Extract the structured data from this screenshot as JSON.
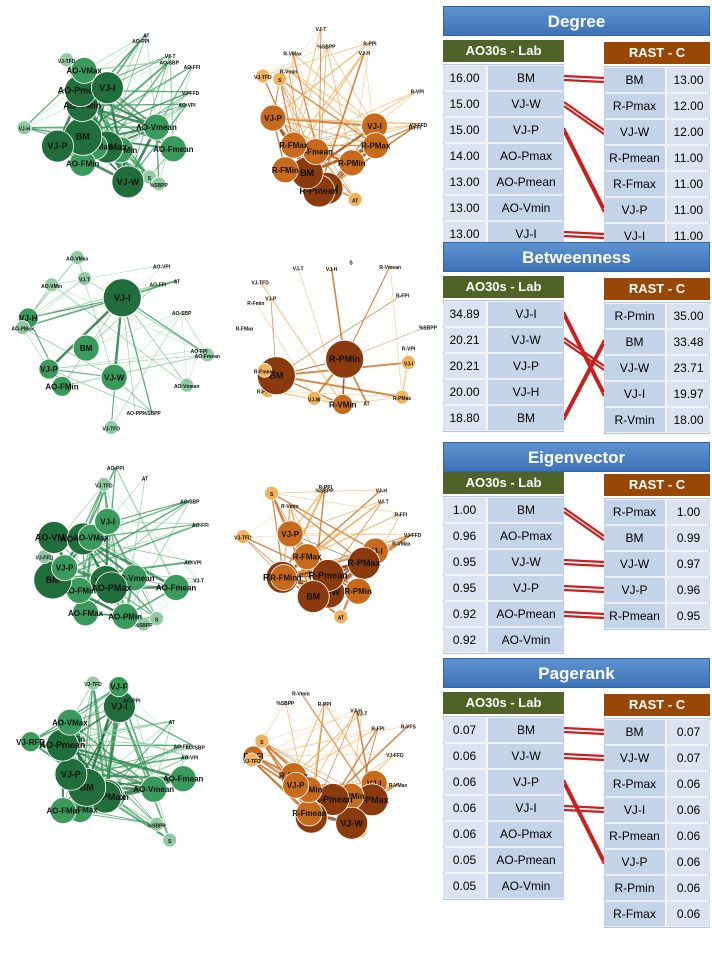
{
  "colors": {
    "green_dark": "#1f6e3c",
    "green_mid": "#3a9a5c",
    "green_light": "#8fcaa2",
    "orange_dark": "#8a3a0c",
    "orange_mid": "#c86a1c",
    "orange_light": "#f0b25a",
    "title_blue": "#4a7fc1",
    "lab_header": "#4f6228",
    "rast_header": "#974806",
    "connector_red": "#cc1f1f"
  },
  "panels": [
    {
      "title": "Degree",
      "lab_header": "AO30s - Lab",
      "rast_header": "RAST - C",
      "lab": [
        [
          "16.00",
          "BM"
        ],
        [
          "15.00",
          "VJ-W"
        ],
        [
          "15.00",
          "VJ-P"
        ],
        [
          "14.00",
          "AO-Pmax"
        ],
        [
          "13.00",
          "AO-Pmean"
        ],
        [
          "13.00",
          "AO-Vmin"
        ],
        [
          "13.00",
          "VJ-I"
        ]
      ],
      "rast": [
        [
          "BM",
          "13.00"
        ],
        [
          "R-Pmax",
          "12.00"
        ],
        [
          "VJ-W",
          "12.00"
        ],
        [
          "R-Pmean",
          "11.00"
        ],
        [
          "R-Fmax",
          "11.00"
        ],
        [
          "VJ-P",
          "11.00"
        ],
        [
          "VJ-I",
          "11.00"
        ]
      ],
      "links": [
        [
          0,
          0
        ],
        [
          1,
          2
        ],
        [
          2,
          5
        ],
        [
          6,
          6
        ]
      ]
    },
    {
      "title": "Betweenness",
      "lab_header": "AO30s - Lab",
      "rast_header": "RAST - C",
      "lab": [
        [
          "34.89",
          "VJ-I"
        ],
        [
          "20.21",
          "VJ-W"
        ],
        [
          "20.21",
          "VJ-P"
        ],
        [
          "20.00",
          "VJ-H"
        ],
        [
          "18.80",
          "BM"
        ]
      ],
      "rast": [
        [
          "R-Pmin",
          "35.00"
        ],
        [
          "BM",
          "33.48"
        ],
        [
          "VJ-W",
          "23.71"
        ],
        [
          "VJ-I",
          "19.97"
        ],
        [
          "R-Vmin",
          "18.00"
        ]
      ],
      "links": [
        [
          0,
          3
        ],
        [
          1,
          2
        ],
        [
          4,
          1
        ]
      ]
    },
    {
      "title": "Eigenvector",
      "lab_header": "AO30s - Lab",
      "rast_header": "RAST - C",
      "lab": [
        [
          "1.00",
          "BM"
        ],
        [
          "0.96",
          "AO-Pmax"
        ],
        [
          "0.95",
          "VJ-W"
        ],
        [
          "0.95",
          "VJ-P"
        ],
        [
          "0.92",
          "AO-Pmean"
        ],
        [
          "0.92",
          "AO-Vmin"
        ]
      ],
      "rast": [
        [
          "R-Pmax",
          "1.00"
        ],
        [
          "BM",
          "0.99"
        ],
        [
          "VJ-W",
          "0.97"
        ],
        [
          "VJ-P",
          "0.96"
        ],
        [
          "R-Pmean",
          "0.95"
        ]
      ],
      "links": [
        [
          0,
          1
        ],
        [
          2,
          2
        ],
        [
          3,
          3
        ],
        [
          4,
          4
        ]
      ]
    },
    {
      "title": "Pagerank",
      "lab_header": "AO30s - Lab",
      "rast_header": "RAST - C",
      "lab": [
        [
          "0.07",
          "BM"
        ],
        [
          "0.06",
          "VJ-W"
        ],
        [
          "0.06",
          "VJ-P"
        ],
        [
          "0.06",
          "VJ-I"
        ],
        [
          "0.06",
          "AO-Pmax"
        ],
        [
          "0.05",
          "AO-Pmean"
        ],
        [
          "0.05",
          "AO-Vmin"
        ]
      ],
      "rast": [
        [
          "BM",
          "0.07"
        ],
        [
          "VJ-W",
          "0.07"
        ],
        [
          "R-Pmax",
          "0.06"
        ],
        [
          "VJ-I",
          "0.06"
        ],
        [
          "R-Pmean",
          "0.06"
        ],
        [
          "VJ-P",
          "0.06"
        ],
        [
          "R-Pmin",
          "0.06"
        ],
        [
          "R-Fmax",
          "0.06"
        ]
      ],
      "links": [
        [
          0,
          0
        ],
        [
          1,
          1
        ],
        [
          2,
          5
        ],
        [
          3,
          3
        ]
      ]
    }
  ],
  "networks": [
    {
      "theme": "green",
      "nodes": [
        {
          "id": "AO-Fmean",
          "s": 3
        },
        {
          "id": "AO-Vmean",
          "s": 3
        },
        {
          "id": "S",
          "s": 1
        },
        {
          "id": "%SBPP",
          "s": 1
        },
        {
          "id": "AO-PMin",
          "s": 3
        },
        {
          "id": "VJ-W",
          "s": 4
        },
        {
          "id": "AO-PMax",
          "s": 4
        },
        {
          "id": "AO-FMax",
          "s": 3
        },
        {
          "id": "AO-FMin",
          "s": 3
        },
        {
          "id": "BM",
          "s": 5
        },
        {
          "id": "VJ-P",
          "s": 4
        },
        {
          "id": "VJ-H",
          "s": 1
        },
        {
          "id": "AO-VMin",
          "s": 4
        },
        {
          "id": "AO-Pmean",
          "s": 4
        },
        {
          "id": "AO-VMax",
          "s": 3
        },
        {
          "id": "VJ-TFD",
          "s": 1
        },
        {
          "id": "VJ-I",
          "s": 4
        },
        {
          "id": "AO-PPI",
          "s": 0
        },
        {
          "id": "AT",
          "s": 0
        },
        {
          "id": "AO-SBP",
          "s": 0
        },
        {
          "id": "VJ-T",
          "s": 0
        },
        {
          "id": "AO-FFI",
          "s": 0
        },
        {
          "id": "VJ-FFD",
          "s": 0
        },
        {
          "id": "AO-VPI",
          "s": 0
        }
      ]
    },
    {
      "theme": "orange",
      "nodes": [
        {
          "id": "VJ-I",
          "s": 3
        },
        {
          "id": "R-PMax",
          "s": 3
        },
        {
          "id": "R-PMin",
          "s": 3
        },
        {
          "id": "AT",
          "s": 1
        },
        {
          "id": "VJ-W",
          "s": 4
        },
        {
          "id": "R-Pmean",
          "s": 4
        },
        {
          "id": "BM",
          "s": 4
        },
        {
          "id": "R-Fmean",
          "s": 3
        },
        {
          "id": "R-FMin",
          "s": 3
        },
        {
          "id": "R-FMax",
          "s": 3
        },
        {
          "id": "VJ-P",
          "s": 3
        },
        {
          "id": "VJ-TFD",
          "s": 1
        },
        {
          "id": "S",
          "s": 1
        },
        {
          "id": "R-Vmin",
          "s": 0
        },
        {
          "id": "R-VMax",
          "s": 0
        },
        {
          "id": "VJ-T",
          "s": 0
        },
        {
          "id": "%SBPP",
          "s": 0
        },
        {
          "id": "R-PPI",
          "s": 0
        },
        {
          "id": "VJ-H",
          "s": 0
        },
        {
          "id": "R-VPI",
          "s": 0
        },
        {
          "id": "VJ-FFD",
          "s": 0
        },
        {
          "id": "R-FFI",
          "s": 0
        }
      ]
    },
    {
      "theme": "green",
      "nodes": [
        {
          "id": "AO-Fmean",
          "s": 1
        },
        {
          "id": "AO-Vmean",
          "s": 1
        },
        {
          "id": "%SBPP",
          "s": 0
        },
        {
          "id": "VJ-W",
          "s": 3
        },
        {
          "id": "AO-PPI",
          "s": 0
        },
        {
          "id": "VJ-TFD",
          "s": 1
        },
        {
          "id": "AO-FMin",
          "s": 2
        },
        {
          "id": "BM",
          "s": 3
        },
        {
          "id": "VJ-P",
          "s": 2
        },
        {
          "id": "VJ-H",
          "s": 2
        },
        {
          "id": "AO-PMax",
          "s": 1
        },
        {
          "id": "AO-VMin",
          "s": 1
        },
        {
          "id": "VJ-T",
          "s": 1
        },
        {
          "id": "AO-VMax",
          "s": 1
        },
        {
          "id": "VJ-I",
          "s": 5
        },
        {
          "id": "AO-VPI",
          "s": 0
        },
        {
          "id": "AT",
          "s": 0
        },
        {
          "id": "AO-FFI",
          "s": 0
        },
        {
          "id": "AO-SBP",
          "s": 0
        },
        {
          "id": "AO-FPI",
          "s": 0
        }
      ]
    },
    {
      "theme": "orange",
      "nodes": [
        {
          "id": "VJ-I",
          "s": 1
        },
        {
          "id": "R-PMax",
          "s": 1
        },
        {
          "id": "R-PMin",
          "s": 5
        },
        {
          "id": "AT",
          "s": 0
        },
        {
          "id": "R-VMin",
          "s": 2
        },
        {
          "id": "VJ-W",
          "s": 1
        },
        {
          "id": "R-Pmean",
          "s": 1
        },
        {
          "id": "BM",
          "s": 5
        },
        {
          "id": "R-Fmean",
          "s": 1
        },
        {
          "id": "R-FMax",
          "s": 0
        },
        {
          "id": "R-Fmin",
          "s": 0
        },
        {
          "id": "VJ-P",
          "s": 0
        },
        {
          "id": "VJ-TFD",
          "s": 0
        },
        {
          "id": "VJ-T",
          "s": 0
        },
        {
          "id": "VJ-H",
          "s": 0
        },
        {
          "id": "S",
          "s": 0
        },
        {
          "id": "R-Vmean",
          "s": 0
        },
        {
          "id": "R-FPI",
          "s": 0
        },
        {
          "id": "%SBPP",
          "s": 0
        },
        {
          "id": "R-VPI",
          "s": 0
        }
      ]
    },
    {
      "theme": "green",
      "nodes": [
        {
          "id": "AO-Fmean",
          "s": 3
        },
        {
          "id": "AO-Vmean",
          "s": 3
        },
        {
          "id": "S",
          "s": 1
        },
        {
          "id": "%SBPP",
          "s": 1
        },
        {
          "id": "AO-PMin",
          "s": 3
        },
        {
          "id": "VJ-W",
          "s": 4
        },
        {
          "id": "AO-PMax",
          "s": 4
        },
        {
          "id": "AO-FMax",
          "s": 3
        },
        {
          "id": "AO-FMin",
          "s": 3
        },
        {
          "id": "BM",
          "s": 5
        },
        {
          "id": "VJ-P",
          "s": 3
        },
        {
          "id": "VJ-FFD",
          "s": 1
        },
        {
          "id": "AO-VMin",
          "s": 4
        },
        {
          "id": "AO-Pmean",
          "s": 4
        },
        {
          "id": "AO-VMax",
          "s": 3
        },
        {
          "id": "VJ-TFD",
          "s": 1
        },
        {
          "id": "VJ-I",
          "s": 3
        },
        {
          "id": "AO-PPI",
          "s": 0
        },
        {
          "id": "AT",
          "s": 0
        },
        {
          "id": "AO-SBP",
          "s": 0
        },
        {
          "id": "AO-FFI",
          "s": 0
        },
        {
          "id": "AO-VPI",
          "s": 0
        },
        {
          "id": "VJ-T",
          "s": 0
        }
      ]
    },
    {
      "theme": "orange",
      "nodes": [
        {
          "id": "VJ-I",
          "s": 3
        },
        {
          "id": "R-PMax",
          "s": 4
        },
        {
          "id": "R-PMin",
          "s": 3
        },
        {
          "id": "AT",
          "s": 1
        },
        {
          "id": "VJ-W",
          "s": 4
        },
        {
          "id": "R-Pmean",
          "s": 4
        },
        {
          "id": "BM",
          "s": 4
        },
        {
          "id": "R-Fmean",
          "s": 4
        },
        {
          "id": "R-FMin",
          "s": 3
        },
        {
          "id": "R-FMax",
          "s": 3
        },
        {
          "id": "VJ-P",
          "s": 3
        },
        {
          "id": "VJ-TFD",
          "s": 1
        },
        {
          "id": "S",
          "s": 1
        },
        {
          "id": "R-Vmin",
          "s": 0
        },
        {
          "id": "%SBPP",
          "s": 0
        },
        {
          "id": "R-PPI",
          "s": 0
        },
        {
          "id": "VJ-H",
          "s": 0
        },
        {
          "id": "VJ-T",
          "s": 0
        },
        {
          "id": "R-FFI",
          "s": 0
        },
        {
          "id": "VJ-FFD",
          "s": 0
        },
        {
          "id": "R-VMax",
          "s": 0
        }
      ]
    },
    {
      "theme": "green",
      "nodes": [
        {
          "id": "AO-Fmean",
          "s": 3
        },
        {
          "id": "AO-Vmean",
          "s": 3
        },
        {
          "id": "S",
          "s": 1
        },
        {
          "id": "%SBPP",
          "s": 1
        },
        {
          "id": "AO-PMin",
          "s": 3
        },
        {
          "id": "VJ-W",
          "s": 4
        },
        {
          "id": "AO-PMax",
          "s": 4
        },
        {
          "id": "AO-FMax",
          "s": 3
        },
        {
          "id": "AO-FMin",
          "s": 3
        },
        {
          "id": "BM",
          "s": 5
        },
        {
          "id": "VJ-P",
          "s": 4
        },
        {
          "id": "VJ-RFD",
          "s": 2
        },
        {
          "id": "AO-VMin",
          "s": 3
        },
        {
          "id": "AO-Pmean",
          "s": 4
        },
        {
          "id": "AO-VMax",
          "s": 3
        },
        {
          "id": "VJ-TFD",
          "s": 1
        },
        {
          "id": "VJ-I",
          "s": 4
        },
        {
          "id": "VJ-F",
          "s": 2
        },
        {
          "id": "AO-PPI",
          "s": 0
        },
        {
          "id": "AT",
          "s": 0
        },
        {
          "id": "AO-SBP",
          "s": 0
        },
        {
          "id": "AO-FFI",
          "s": 0
        },
        {
          "id": "AO-VPI",
          "s": 0
        }
      ]
    },
    {
      "theme": "orange",
      "nodes": [
        {
          "id": "VJ-I",
          "s": 3
        },
        {
          "id": "R-PMax",
          "s": 4
        },
        {
          "id": "R-PMin",
          "s": 3
        },
        {
          "id": "AT",
          "s": 1
        },
        {
          "id": "VJ-W",
          "s": 4
        },
        {
          "id": "R-Pmean",
          "s": 4
        },
        {
          "id": "BM",
          "s": 4
        },
        {
          "id": "R-Fmean",
          "s": 3
        },
        {
          "id": "R-FMin",
          "s": 3
        },
        {
          "id": "R-FMax",
          "s": 3
        },
        {
          "id": "VJ-P",
          "s": 3
        },
        {
          "id": "R-FFI",
          "s": 2
        },
        {
          "id": "VJ-TFD",
          "s": 1
        },
        {
          "id": "S",
          "s": 1
        },
        {
          "id": "R-Vmin",
          "s": 0
        },
        {
          "id": "%SBPP",
          "s": 0
        },
        {
          "id": "R-PPI",
          "s": 0
        },
        {
          "id": "VJ-H",
          "s": 0
        },
        {
          "id": "VJ-T",
          "s": 0
        },
        {
          "id": "R-FPI",
          "s": 0
        },
        {
          "id": "R-VFS",
          "s": 0
        },
        {
          "id": "VJ-FFD",
          "s": 0
        },
        {
          "id": "R-VMax",
          "s": 0
        }
      ]
    }
  ]
}
